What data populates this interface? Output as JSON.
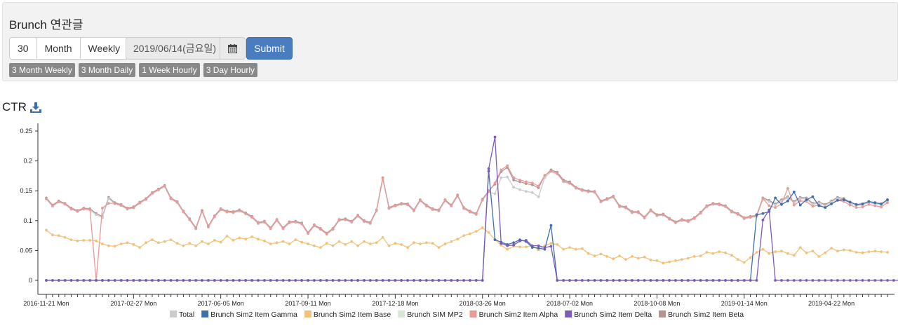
{
  "app": {
    "title": "Brunch 연관글"
  },
  "controls": {
    "segments": [
      "30",
      "Month",
      "Weekly"
    ],
    "date_value": "2019/06/14(금요일)",
    "calendar_icon": "calendar-icon",
    "submit_label": "Submit",
    "presets": [
      "3 Month Weekly",
      "3 Month Daily",
      "1 Week Hourly",
      "3 Day Hourly"
    ]
  },
  "chart_section": {
    "title": "CTR",
    "download_icon": "download-icon"
  },
  "chart_data": {
    "type": "line",
    "title": "CTR",
    "xlabel": "",
    "ylabel": "",
    "ylim": [
      0,
      0.25
    ],
    "y_ticks": [
      "0",
      "0.05",
      "0.1",
      "0.15",
      "0.2",
      "0.25"
    ],
    "x_ticks": [
      "2016-11-21 Mon",
      "2017-02-27 Mon",
      "2017-06-05 Mon",
      "2017-09-11 Mon",
      "2017-12-18 Mon",
      "2018-03-26 Mon",
      "2018-07-02 Mon",
      "2018-10-08 Mon",
      "2019-01-14 Mon",
      "2019-04-22 Mon"
    ],
    "x_tick_indices": [
      0,
      14,
      28,
      42,
      56,
      70,
      84,
      98,
      112,
      126
    ],
    "num_points": 136,
    "legend": [
      {
        "name": "Total",
        "color": "#cccccc"
      },
      {
        "name": "Brunch Sim2 Item Gamma",
        "color": "#3f6ead"
      },
      {
        "name": "Brunch Sim2 Item Base",
        "color": "#f2c27a"
      },
      {
        "name": "Brunch SIM MP2",
        "color": "#d6e8d3",
        "hidden": true
      },
      {
        "name": "Brunch Sim2 Item Alpha",
        "color": "#e89a98"
      },
      {
        "name": "Brunch Sim2 Item Delta",
        "color": "#7a5bb8"
      },
      {
        "name": "Brunch Sim2 Item Beta",
        "color": "#b09592"
      }
    ],
    "series": [
      {
        "name": "Brunch Sim2 Item Beta",
        "values": [
          0.138,
          0.126,
          0.133,
          0.129,
          0.121,
          0.117,
          0.121,
          0.12,
          0.112,
          0.107,
          0.139,
          0.13,
          0.127,
          0.121,
          0.123,
          0.131,
          0.137,
          0.147,
          0.153,
          0.159,
          0.138,
          0.132,
          0.116,
          0.103,
          0.088,
          0.117,
          0.091,
          0.108,
          0.12,
          0.116,
          0.115,
          0.118,
          0.113,
          0.107,
          0.097,
          0.099,
          0.088,
          0.102,
          0.088,
          0.098,
          0.099,
          0.096,
          0.08,
          0.093,
          0.087,
          0.079,
          0.087,
          0.102,
          0.103,
          0.099,
          0.109,
          0.1,
          0.097,
          0.118,
          0.172,
          0.122,
          0.126,
          0.129,
          0.128,
          0.118,
          0.135,
          0.126,
          0.12,
          0.118,
          0.135,
          0.126,
          0.143,
          0.122,
          0.116,
          0.112,
          0.136,
          0.15,
          0.161,
          0.182,
          0.189,
          0.168,
          0.165,
          0.162,
          0.16,
          0.155,
          0.175,
          0.185,
          0.181,
          0.168,
          0.165,
          0.156,
          0.152,
          0.15,
          0.149,
          0.133,
          0.137,
          0.141,
          0.125,
          0.123,
          0.115,
          0.115,
          0.106,
          0.118,
          0.11,
          0.111,
          0.104,
          0.098,
          0.102,
          0.1,
          0.105,
          0.114,
          0.125,
          0.129,
          0.128,
          0.125,
          0.116,
          0.112,
          0.105,
          0.107,
          0.109,
          0.138,
          0.134,
          0.128,
          0.135,
          0.14,
          0.132,
          0.139,
          0.138,
          0.129,
          0.131,
          0.127,
          0.133,
          0.139,
          0.137,
          0.131,
          0.127,
          0.128,
          0.132,
          0.13,
          0.128,
          0.135
        ]
      },
      {
        "name": "Total",
        "values": [
          0.136,
          0.124,
          0.131,
          0.127,
          0.119,
          0.115,
          0.119,
          0.118,
          0.11,
          0.105,
          0.137,
          0.128,
          0.125,
          0.119,
          0.121,
          0.129,
          0.135,
          0.145,
          0.151,
          0.157,
          0.136,
          0.13,
          0.114,
          0.101,
          0.086,
          0.115,
          0.089,
          0.106,
          0.118,
          0.114,
          0.113,
          0.116,
          0.111,
          0.105,
          0.095,
          0.097,
          0.086,
          0.1,
          0.086,
          0.096,
          0.097,
          0.094,
          0.078,
          0.091,
          0.085,
          0.077,
          0.085,
          0.1,
          0.101,
          0.097,
          0.107,
          0.098,
          0.095,
          0.116,
          0.17,
          0.12,
          0.124,
          0.127,
          0.126,
          0.116,
          0.133,
          0.124,
          0.118,
          0.116,
          0.133,
          0.124,
          0.141,
          0.12,
          0.114,
          0.11,
          0.134,
          0.148,
          0.145,
          0.172,
          0.173,
          0.156,
          0.152,
          0.149,
          0.147,
          0.14,
          0.172,
          0.182,
          0.178,
          0.165,
          0.162,
          0.154,
          0.15,
          0.148,
          0.147,
          0.131,
          0.135,
          0.139,
          0.123,
          0.121,
          0.113,
          0.113,
          0.104,
          0.116,
          0.108,
          0.109,
          0.102,
          0.096,
          0.1,
          0.098,
          0.103,
          0.112,
          0.123,
          0.127,
          0.126,
          0.123,
          0.114,
          0.11,
          0.103,
          0.105,
          0.107,
          0.136,
          0.132,
          0.126,
          0.133,
          0.138,
          0.13,
          0.137,
          0.136,
          0.127,
          0.129,
          0.125,
          0.131,
          0.137,
          0.135,
          0.129,
          0.125,
          0.126,
          0.13,
          0.128,
          0.126,
          0.133
        ]
      },
      {
        "name": "Brunch Sim2 Item Alpha",
        "values": [
          0.137,
          0.125,
          0.132,
          0.128,
          0.12,
          0.116,
          0.12,
          0.119,
          0.0,
          0.121,
          0.129,
          0.129,
          0.126,
          0.12,
          0.122,
          0.13,
          0.136,
          0.146,
          0.152,
          0.158,
          0.137,
          0.131,
          0.115,
          0.102,
          0.087,
          0.116,
          0.09,
          0.107,
          0.119,
          0.115,
          0.114,
          0.117,
          0.112,
          0.106,
          0.096,
          0.098,
          0.087,
          0.101,
          0.087,
          0.097,
          0.098,
          0.095,
          0.079,
          0.092,
          0.086,
          0.078,
          0.086,
          0.101,
          0.102,
          0.098,
          0.108,
          0.099,
          0.096,
          0.117,
          0.171,
          0.121,
          0.125,
          0.128,
          0.127,
          0.117,
          0.134,
          0.125,
          0.119,
          0.117,
          0.134,
          0.125,
          0.142,
          0.121,
          0.115,
          0.111,
          0.135,
          0.149,
          0.163,
          0.185,
          0.192,
          0.172,
          0.168,
          0.165,
          0.163,
          0.158,
          0.176,
          0.183,
          0.179,
          0.166,
          0.163,
          0.155,
          0.151,
          0.149,
          0.148,
          0.132,
          0.136,
          0.14,
          0.124,
          0.122,
          0.114,
          0.114,
          0.105,
          0.117,
          0.109,
          0.11,
          0.103,
          0.097,
          0.101,
          0.099,
          0.104,
          0.113,
          0.124,
          0.128,
          0.127,
          0.124,
          0.115,
          0.111,
          0.104,
          0.106,
          0.108,
          0.137,
          0.125,
          0.122,
          0.128,
          0.154,
          0.126,
          0.133,
          0.132,
          0.124,
          0.126,
          0.122,
          0.128,
          0.134,
          0.132,
          0.126,
          0.122,
          0.123,
          0.127,
          0.125,
          0.123,
          0.13
        ]
      },
      {
        "name": "Brunch Sim2 Item Base",
        "values": [
          0.084,
          0.076,
          0.075,
          0.072,
          0.068,
          0.066,
          0.067,
          0.067,
          0.066,
          0.061,
          0.058,
          0.057,
          0.061,
          0.063,
          0.06,
          0.055,
          0.063,
          0.068,
          0.063,
          0.065,
          0.068,
          0.062,
          0.058,
          0.062,
          0.058,
          0.065,
          0.061,
          0.067,
          0.064,
          0.074,
          0.067,
          0.071,
          0.069,
          0.073,
          0.069,
          0.066,
          0.061,
          0.063,
          0.065,
          0.061,
          0.068,
          0.064,
          0.061,
          0.058,
          0.055,
          0.062,
          0.058,
          0.065,
          0.06,
          0.065,
          0.058,
          0.065,
          0.061,
          0.063,
          0.072,
          0.058,
          0.062,
          0.06,
          0.055,
          0.063,
          0.061,
          0.063,
          0.062,
          0.055,
          0.061,
          0.065,
          0.069,
          0.075,
          0.078,
          0.082,
          0.088,
          0.08,
          0.068,
          0.059,
          0.052,
          0.057,
          0.056,
          0.056,
          0.058,
          0.051,
          0.058,
          0.062,
          0.06,
          0.052,
          0.055,
          0.052,
          0.053,
          0.045,
          0.041,
          0.044,
          0.04,
          0.036,
          0.041,
          0.035,
          0.04,
          0.037,
          0.039,
          0.034,
          0.033,
          0.029,
          0.031,
          0.033,
          0.035,
          0.037,
          0.04,
          0.041,
          0.047,
          0.045,
          0.048,
          0.046,
          0.042,
          0.035,
          0.03,
          0.038,
          0.047,
          0.052,
          0.045,
          0.048,
          0.049,
          0.045,
          0.042,
          0.055,
          0.046,
          0.049,
          0.04,
          0.046,
          0.054,
          0.049,
          0.051,
          0.05,
          0.047,
          0.046,
          0.048,
          0.049,
          0.048,
          0.047
        ]
      },
      {
        "name": "Brunch Sim2 Item Gamma",
        "values": [
          0,
          0,
          0,
          0,
          0,
          0,
          0,
          0,
          0,
          0,
          0,
          0,
          0,
          0,
          0,
          0,
          0,
          0,
          0,
          0,
          0,
          0,
          0,
          0,
          0,
          0,
          0,
          0,
          0,
          0,
          0,
          0,
          0,
          0,
          0,
          0,
          0,
          0,
          0,
          0,
          0,
          0,
          0,
          0,
          0,
          0,
          0,
          0,
          0,
          0,
          0,
          0,
          0,
          0,
          0,
          0,
          0,
          0,
          0,
          0,
          0,
          0,
          0,
          0,
          0,
          0,
          0,
          0,
          0,
          0,
          0,
          0.183,
          0.068,
          0.064,
          0.06,
          0.063,
          0.068,
          0.065,
          0.055,
          0.054,
          0.052,
          0.092,
          0,
          0,
          0,
          0,
          0,
          0,
          0,
          0,
          0,
          0,
          0,
          0,
          0,
          0,
          0,
          0,
          0,
          0,
          0,
          0,
          0,
          0,
          0,
          0,
          0,
          0,
          0,
          0,
          0,
          0,
          0,
          0,
          0.11,
          0.112,
          0.115,
          0.138,
          0.127,
          0.133,
          0.148,
          0.126,
          0.135,
          0.14,
          0.125,
          0.122,
          0.128,
          0.134,
          0.135,
          0.131,
          0.127,
          0.128,
          0.132,
          0.13,
          0.128,
          0.135
        ]
      },
      {
        "name": "Brunch Sim2 Item Delta",
        "values": [
          0,
          0,
          0,
          0,
          0,
          0,
          0,
          0,
          0,
          0,
          0,
          0,
          0,
          0,
          0,
          0,
          0,
          0,
          0,
          0,
          0,
          0,
          0,
          0,
          0,
          0,
          0,
          0,
          0,
          0,
          0,
          0,
          0,
          0,
          0,
          0,
          0,
          0,
          0,
          0,
          0,
          0,
          0,
          0,
          0,
          0,
          0,
          0,
          0,
          0,
          0,
          0,
          0,
          0,
          0,
          0,
          0,
          0,
          0,
          0,
          0,
          0,
          0,
          0,
          0,
          0,
          0,
          0,
          0,
          0,
          0,
          0.187,
          0.24,
          0.062,
          0.058,
          0.059,
          0.066,
          0.067,
          0.058,
          0.058,
          0.055,
          0.057,
          0,
          0,
          0,
          0,
          0,
          0,
          0,
          0,
          0,
          0,
          0,
          0,
          0,
          0,
          0,
          0,
          0,
          0,
          0,
          0,
          0,
          0,
          0,
          0,
          0,
          0,
          0,
          0,
          0,
          0,
          0,
          0,
          0,
          0.101,
          0.118,
          0,
          0,
          0,
          0,
          0,
          0,
          0,
          0,
          0,
          0,
          0,
          0,
          0,
          0,
          0,
          0,
          0,
          0,
          0,
          0,
          0
        ]
      }
    ]
  }
}
